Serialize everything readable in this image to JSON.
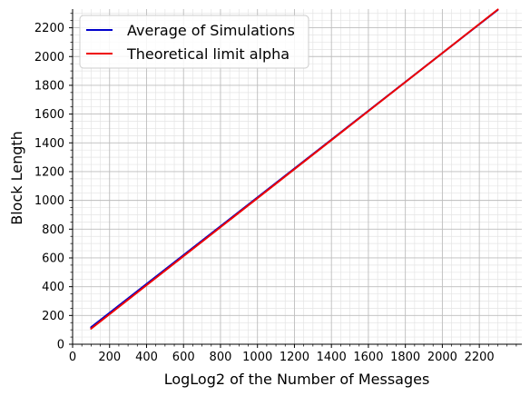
{
  "chart_data": {
    "type": "line",
    "xlabel": "LogLog2 of the Number of Messages",
    "ylabel": "Block Length",
    "xlim": [
      0,
      2430
    ],
    "ylim": [
      0,
      2330
    ],
    "x_major_ticks": [
      0,
      200,
      400,
      600,
      800,
      1000,
      1200,
      1400,
      1600,
      1800,
      2000,
      2200
    ],
    "y_major_ticks": [
      0,
      200,
      400,
      600,
      800,
      1000,
      1200,
      1400,
      1600,
      1800,
      2000,
      2200
    ],
    "x_minor_step": 50,
    "y_minor_step": 50,
    "grid": true,
    "legend_position": "top-left",
    "series": [
      {
        "name": "Average of Simulations",
        "color": "#0000cc",
        "x": [
          100,
          2300
        ],
        "y": [
          118,
          2325
        ]
      },
      {
        "name": "Theoretical limit alpha",
        "color": "#ee0000",
        "x": [
          100,
          2300
        ],
        "y": [
          108,
          2327
        ]
      }
    ]
  }
}
